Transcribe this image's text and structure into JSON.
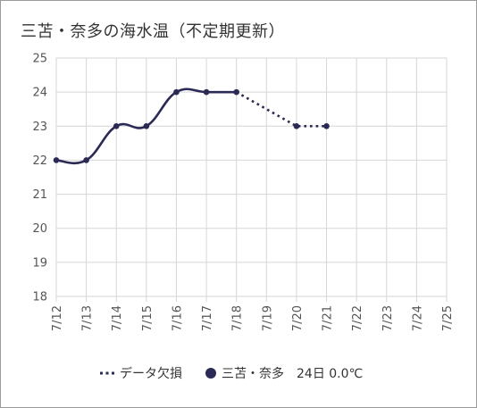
{
  "chart_data": {
    "type": "line",
    "title": "三苫・奈多の海水温（不定期更新）",
    "x_labels": [
      "7/12",
      "7/13",
      "7/14",
      "7/15",
      "7/16",
      "7/17",
      "7/18",
      "7/19",
      "7/20",
      "7/21",
      "7/22",
      "7/23",
      "7/24",
      "7/25"
    ],
    "ylim": [
      18,
      25
    ],
    "y_ticks": [
      18,
      19,
      20,
      21,
      22,
      23,
      24,
      25
    ],
    "grid": true,
    "series": [
      {
        "name": "三苫・奈多　24日 0.0℃",
        "style": "solid",
        "color": "#2a2a55",
        "points": [
          {
            "x": "7/12",
            "y": 22
          },
          {
            "x": "7/13",
            "y": 22
          },
          {
            "x": "7/14",
            "y": 23
          },
          {
            "x": "7/15",
            "y": 23
          },
          {
            "x": "7/16",
            "y": 24
          },
          {
            "x": "7/17",
            "y": 24
          },
          {
            "x": "7/18",
            "y": 24
          },
          {
            "x": "7/20",
            "y": 23
          },
          {
            "x": "7/21",
            "y": 23
          }
        ]
      },
      {
        "name": "データ欠損",
        "style": "dotted",
        "color": "#2a2a55",
        "points": [
          {
            "x": "7/18",
            "y": 24
          },
          {
            "x": "7/20",
            "y": 23
          },
          {
            "x": "7/21",
            "y": 23
          }
        ]
      }
    ],
    "legend_position": "bottom"
  },
  "colors": {
    "series": "#2a2a55",
    "grid": "#d6d6d6",
    "frame": "#9a9a9a"
  }
}
